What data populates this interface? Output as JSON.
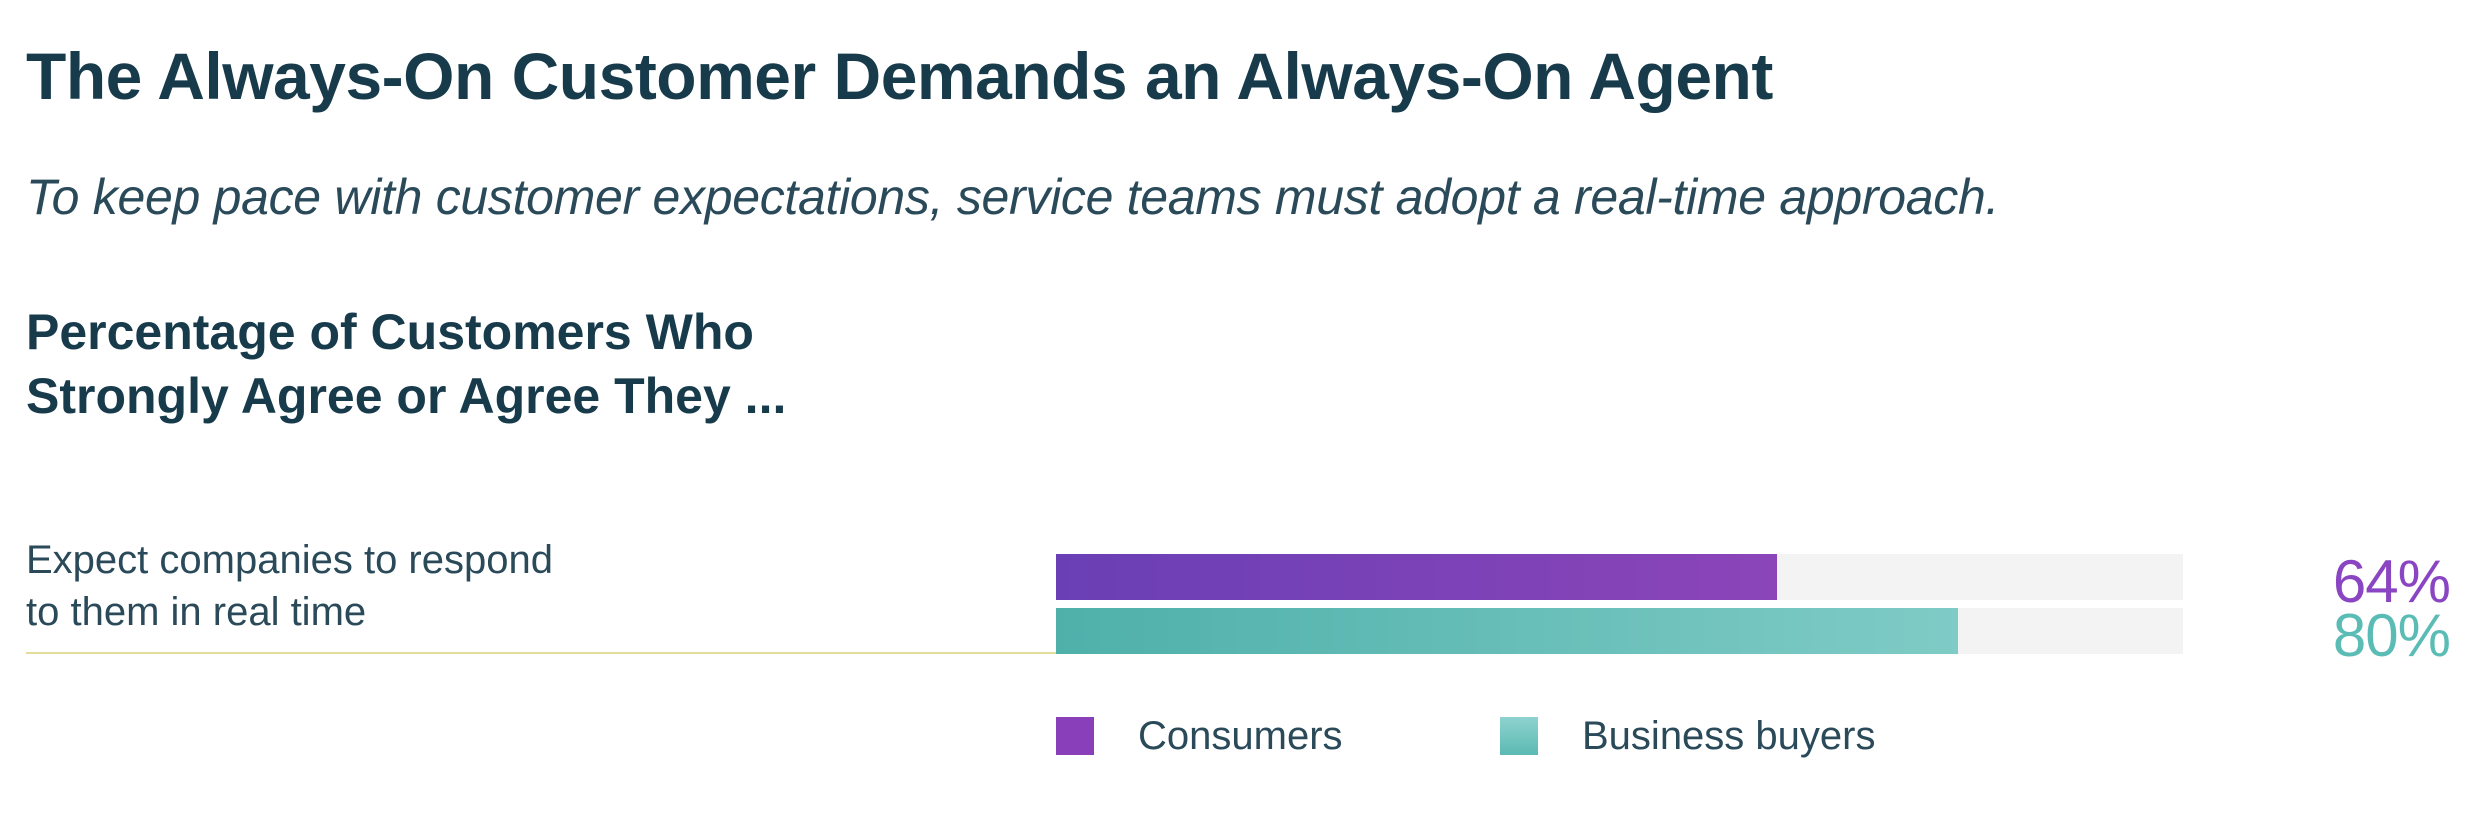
{
  "header": {
    "title": "The Always-On Customer Demands an Always-On Agent",
    "subtitle": "To keep pace with customer expectations, service teams must adopt a real-time approach."
  },
  "chart_data": {
    "type": "bar",
    "orientation": "horizontal",
    "title": "Percentage of Customers Who Strongly Agree or Agree They ...",
    "title_lines": [
      "Percentage of Customers Who",
      "Strongly Agree or Agree They ..."
    ],
    "categories": [
      "Expect companies to respond to them in real time"
    ],
    "category_lines": [
      [
        "Expect companies to respond",
        "to them in real time"
      ]
    ],
    "series": [
      {
        "name": "Consumers",
        "values": [
          64
        ],
        "labels": [
          "64%"
        ],
        "color": "#8a3fba"
      },
      {
        "name": "Business buyers",
        "values": [
          80
        ],
        "labels": [
          "80%"
        ],
        "color": "#5bb9b3"
      }
    ],
    "xlim": [
      0,
      100
    ],
    "unit": "%",
    "grid": false,
    "legend_position": "bottom"
  }
}
